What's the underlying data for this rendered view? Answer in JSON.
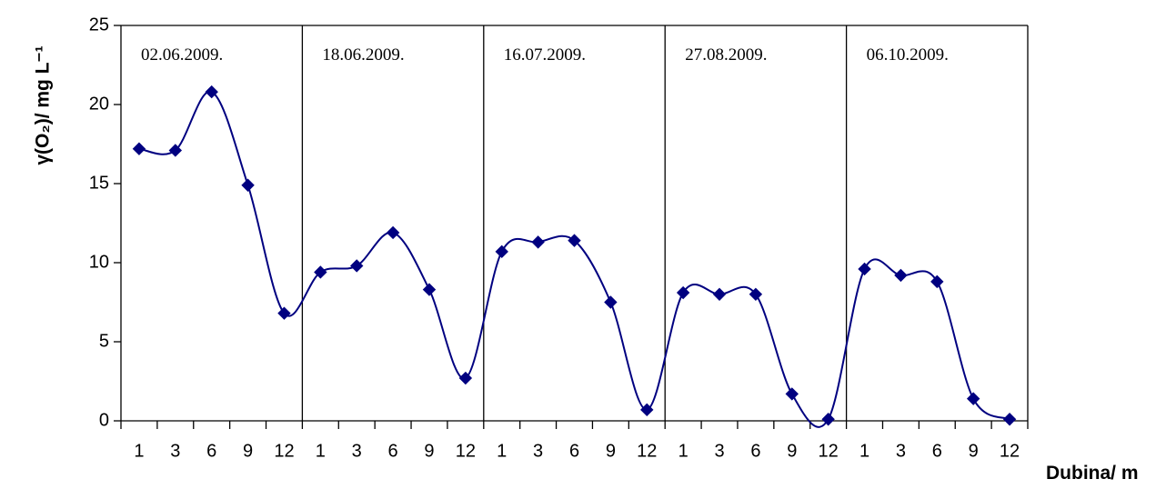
{
  "chart_data": {
    "type": "line",
    "ylabel": "γ(O₂)/ mg L⁻¹",
    "xlabel": "Dubina/ m",
    "ylim": [
      0,
      25
    ],
    "yticks": [
      "0",
      "5",
      "10",
      "15",
      "20",
      "25"
    ],
    "series_color": "#000080",
    "panels": [
      {
        "date": "02.06.2009.",
        "x": [
          "1",
          "3",
          "6",
          "9",
          "12"
        ],
        "values": [
          17.2,
          17.1,
          20.8,
          14.9,
          6.8
        ]
      },
      {
        "date": "18.06.2009.",
        "x": [
          "1",
          "3",
          "6",
          "9",
          "12"
        ],
        "values": [
          9.4,
          9.8,
          11.9,
          8.3,
          2.7
        ]
      },
      {
        "date": "16.07.2009.",
        "x": [
          "1",
          "3",
          "6",
          "9",
          "12"
        ],
        "values": [
          10.7,
          11.3,
          11.4,
          7.5,
          0.7
        ]
      },
      {
        "date": "27.08.2009.",
        "x": [
          "1",
          "3",
          "6",
          "9",
          "12"
        ],
        "values": [
          8.1,
          8.0,
          8.0,
          1.7,
          0.1
        ]
      },
      {
        "date": "06.10.2009.",
        "x": [
          "1",
          "3",
          "6",
          "9",
          "12"
        ],
        "values": [
          9.6,
          9.2,
          8.8,
          1.4,
          0.1
        ]
      }
    ]
  }
}
